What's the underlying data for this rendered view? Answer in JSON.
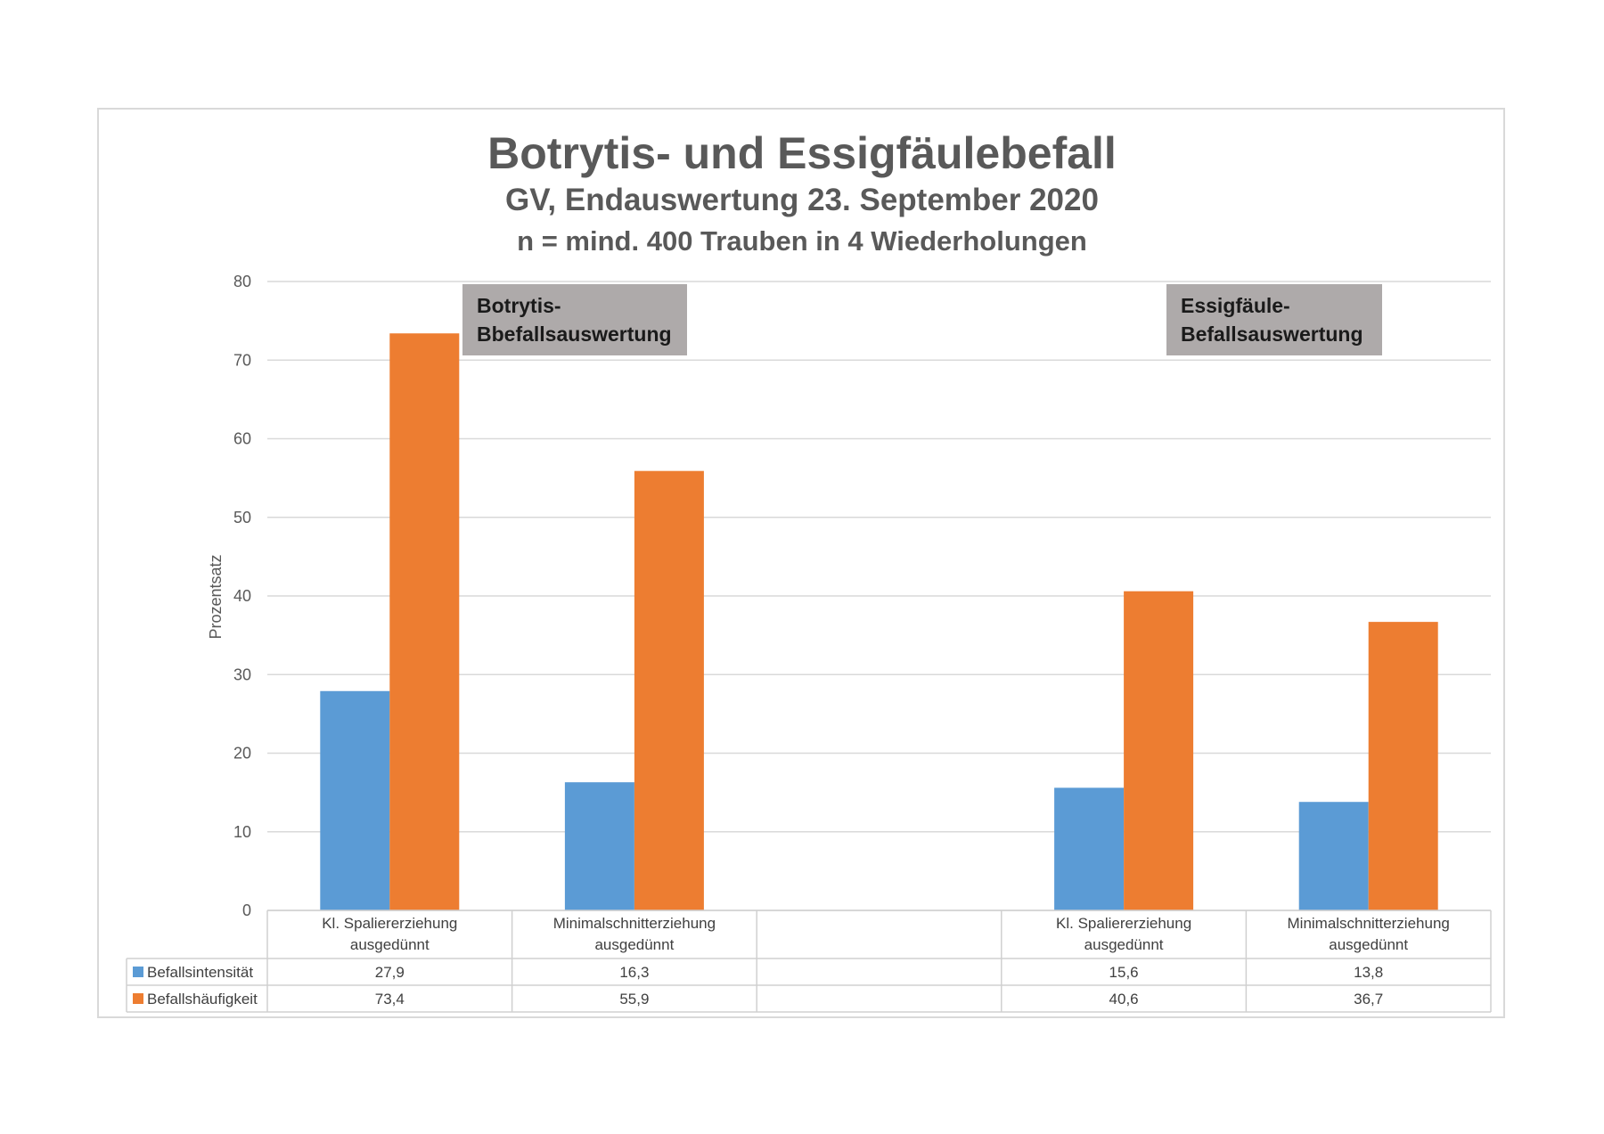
{
  "chart_data": {
    "type": "bar",
    "title": "Botrytis- und Essigfäulebefall",
    "subtitle": [
      "GV, Endauswertung 23. September 2020",
      "n = mind. 400 Trauben in 4 Wiederholungen"
    ],
    "ylabel": "Prozentsatz",
    "ylim": [
      0,
      80
    ],
    "yticks": [
      0,
      10,
      20,
      30,
      40,
      50,
      60,
      70,
      80
    ],
    "categories": [
      [
        "Kl. Spaliererziehung",
        "ausgedünnt"
      ],
      [
        "Minimalschnitterziehung",
        "ausgedünnt"
      ],
      [
        "",
        ""
      ],
      [
        "Kl. Spaliererziehung",
        "ausgedünnt"
      ],
      [
        "Minimalschnitterziehung",
        "ausgedünnt"
      ]
    ],
    "series": [
      {
        "name": "Befallsintensität",
        "color": "#5b9bd5",
        "values": [
          27.9,
          16.3,
          null,
          15.6,
          13.8
        ],
        "labels": [
          "27,9",
          "16,3",
          "",
          "15,6",
          "13,8"
        ]
      },
      {
        "name": "Befallshäufigkeit",
        "color": "#ed7d31",
        "values": [
          73.4,
          55.9,
          null,
          40.6,
          36.7
        ],
        "labels": [
          "73,4",
          "55,9",
          "",
          "40,6",
          "36,7"
        ]
      }
    ],
    "grid": true,
    "annotations": [
      [
        "Botrytis-",
        "Bbefallsauswertung"
      ],
      [
        "Essigfäule-",
        "Befallsauswertung"
      ]
    ]
  }
}
